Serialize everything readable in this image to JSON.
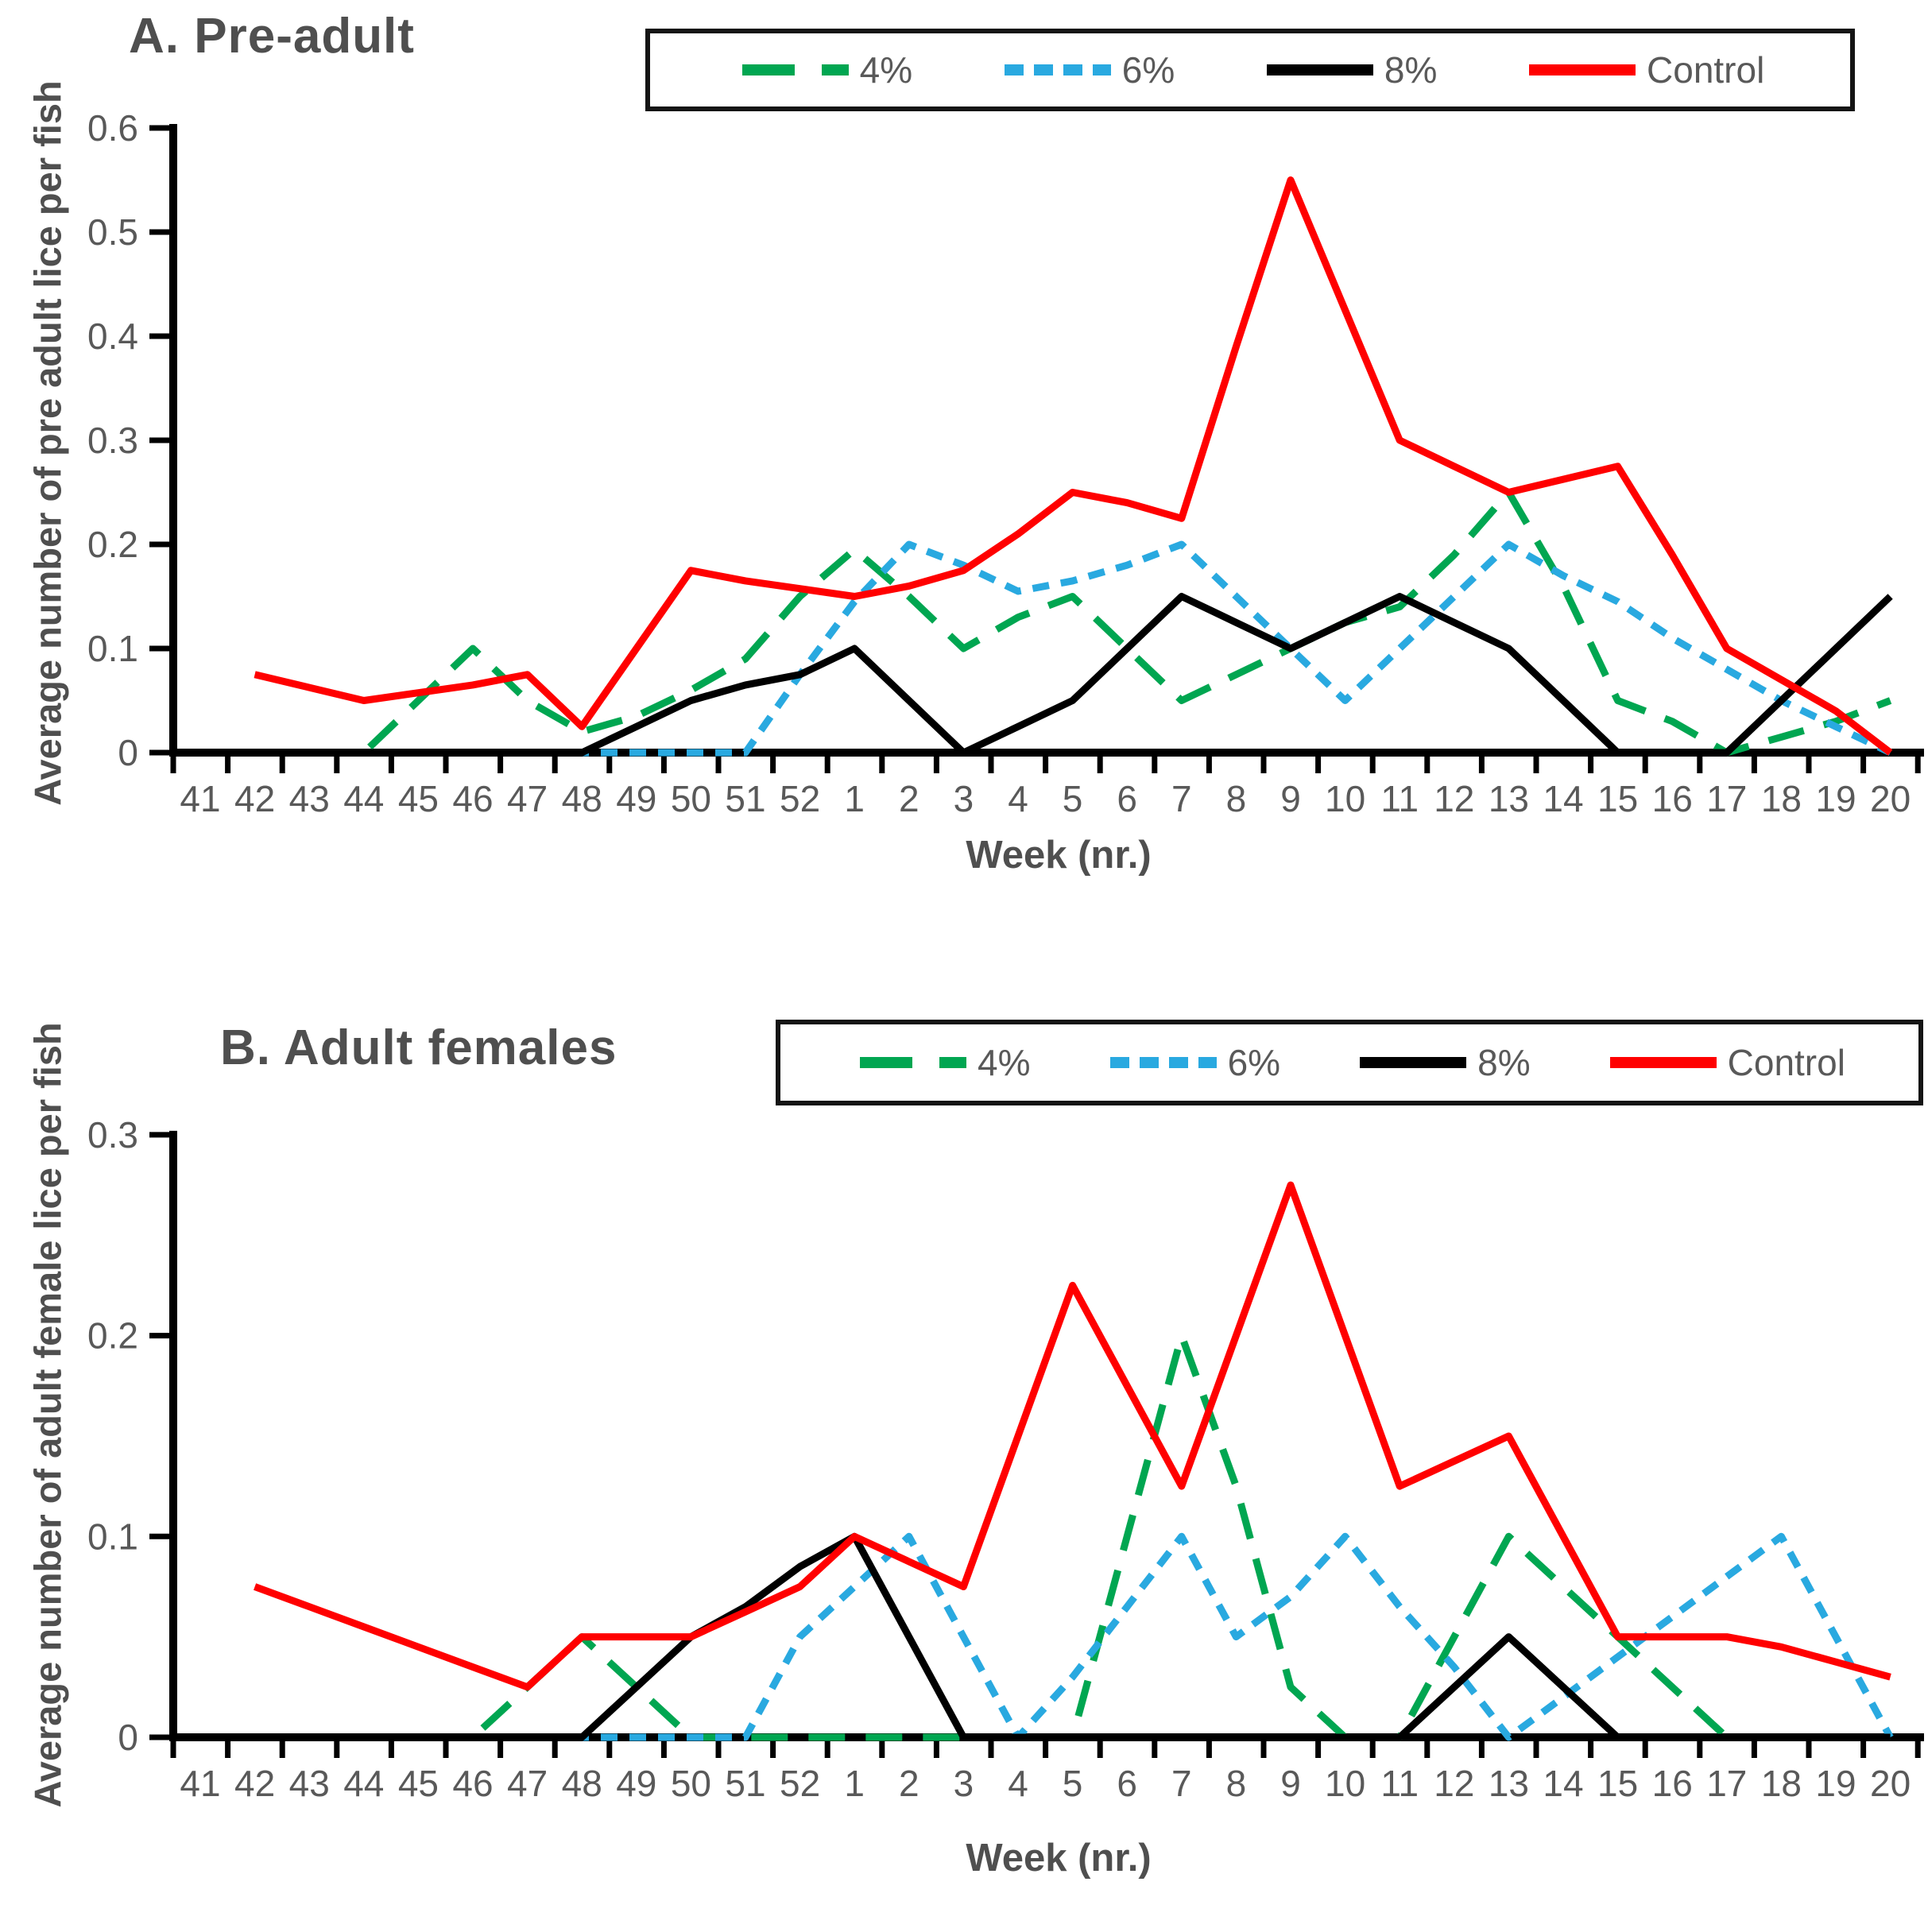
{
  "figure": {
    "background": "#FFFFFF",
    "text_color": "#595959",
    "title_color": "#4F4F4F",
    "axis_color": "#000000"
  },
  "legend": {
    "items": [
      {
        "id": "4pct",
        "label": "4%",
        "color": "#00A651",
        "dash": "long"
      },
      {
        "id": "6pct",
        "label": "6%",
        "color": "#29A9E0",
        "dash": "short"
      },
      {
        "id": "8pct",
        "label": "8%",
        "color": "#000000",
        "dash": "solid"
      },
      {
        "id": "control",
        "label": "Control",
        "color": "#FF0000",
        "dash": "solid"
      }
    ]
  },
  "chart_data": [
    {
      "type": "line",
      "title": "A. Pre-adult",
      "xlabel": "Week (nr.)",
      "ylabel": "Average number of pre adult lice per fish",
      "ylim": [
        0,
        0.6
      ],
      "yticks": [
        "0",
        "0.1",
        "0.2",
        "0.3",
        "0.4",
        "0.5",
        "0.6"
      ],
      "grid": false,
      "legend_position": "top-right",
      "categories": [
        "41",
        "42",
        "43",
        "44",
        "45",
        "46",
        "47",
        "48",
        "49",
        "50",
        "51",
        "52",
        "1",
        "2",
        "3",
        "4",
        "5",
        "6",
        "7",
        "8",
        "9",
        "10",
        "11",
        "12",
        "13",
        "14",
        "15",
        "16",
        "17",
        "18",
        "19",
        "20"
      ],
      "series": [
        {
          "name": "4%",
          "color": "#00A651",
          "dash": "long",
          "values": [
            0,
            0,
            0,
            0,
            0.05,
            0.1,
            0.05,
            0.02,
            0.035,
            0.06,
            0.09,
            0.15,
            0.195,
            0.15,
            0.1,
            0.13,
            0.15,
            0.1,
            0.05,
            0.075,
            0.1,
            0.125,
            0.14,
            0.19,
            0.25,
            0.16,
            0.05,
            0.03,
            0,
            0.015,
            0.03,
            0.05
          ]
        },
        {
          "name": "6%",
          "color": "#29A9E0",
          "dash": "short",
          "values": [
            0,
            0,
            0,
            0,
            0,
            0,
            0,
            0,
            0,
            0,
            0,
            0.075,
            0.145,
            0.2,
            0.18,
            0.155,
            0.165,
            0.18,
            0.2,
            0.15,
            0.1,
            0.05,
            0.1,
            0.15,
            0.2,
            0.17,
            0.145,
            0.11,
            0.08,
            0.05,
            0.025,
            0
          ]
        },
        {
          "name": "8%",
          "color": "#000000",
          "dash": "solid",
          "values": [
            0,
            0,
            0,
            0,
            0,
            0,
            0,
            0,
            0.025,
            0.05,
            0.065,
            0.075,
            0.1,
            0.05,
            0,
            0.025,
            0.05,
            0.1,
            0.15,
            0.125,
            0.1,
            0.125,
            0.15,
            0.125,
            0.1,
            0.05,
            0,
            0,
            0,
            0.05,
            0.1,
            0.15
          ]
        },
        {
          "name": "Control",
          "color": "#FF0000",
          "dash": "solid",
          "values": [
            null,
            0.075,
            0.0625,
            0.05,
            0.0575,
            0.065,
            0.075,
            0.025,
            0.1,
            0.175,
            0.165,
            0.1575,
            0.15,
            0.16,
            0.175,
            0.21,
            0.25,
            0.24,
            0.225,
            0.39,
            0.55,
            0.425,
            0.3,
            0.275,
            0.25,
            0.2625,
            0.275,
            0.19,
            0.1,
            0.07,
            0.04,
            0
          ]
        }
      ]
    },
    {
      "type": "line",
      "title": "B. Adult females",
      "xlabel": "Week (nr.)",
      "ylabel": "Average number of adult female lice per fish",
      "ylim": [
        0,
        0.3
      ],
      "yticks": [
        "0",
        "0.1",
        "0.2",
        "0.3"
      ],
      "grid": false,
      "legend_position": "top-right",
      "categories": [
        "41",
        "42",
        "43",
        "44",
        "45",
        "46",
        "47",
        "48",
        "49",
        "50",
        "51",
        "52",
        "1",
        "2",
        "3",
        "4",
        "5",
        "6",
        "7",
        "8",
        "9",
        "10",
        "11",
        "12",
        "13",
        "14",
        "15",
        "16",
        "17",
        "18",
        "19",
        "20"
      ],
      "series": [
        {
          "name": "4%",
          "color": "#00A651",
          "dash": "long",
          "values": [
            0,
            0,
            0,
            0,
            0,
            0,
            0.025,
            0.05,
            0.025,
            0,
            0,
            0,
            0,
            0,
            0,
            0,
            0,
            0.1,
            0.2,
            0.125,
            0.025,
            0,
            0,
            0.05,
            0.1,
            0.075,
            0.05,
            0.025,
            0,
            0,
            0,
            0
          ]
        },
        {
          "name": "6%",
          "color": "#29A9E0",
          "dash": "short",
          "values": [
            0,
            0,
            0,
            0,
            0,
            0,
            0,
            0,
            0,
            0,
            0,
            0.05,
            0.075,
            0.1,
            0.05,
            0,
            0.03,
            0.065,
            0.1,
            0.05,
            0.07,
            0.1,
            0.065,
            0.035,
            0,
            0.02,
            0.04,
            0.06,
            0.08,
            0.1,
            0.05,
            0
          ]
        },
        {
          "name": "8%",
          "color": "#000000",
          "dash": "solid",
          "values": [
            0,
            0,
            0,
            0,
            0,
            0,
            0,
            0,
            0.025,
            0.05,
            0.065,
            0.085,
            0.1,
            0.05,
            0,
            0,
            0,
            0,
            0,
            0,
            0,
            0,
            0,
            0.025,
            0.05,
            0.025,
            0,
            0,
            0,
            0,
            0,
            0
          ]
        },
        {
          "name": "Control",
          "color": "#FF0000",
          "dash": "solid",
          "values": [
            null,
            0.075,
            0.065,
            0.055,
            0.045,
            0.035,
            0.025,
            0.05,
            0.05,
            0.05,
            0.0625,
            0.075,
            0.1,
            0.0875,
            0.075,
            0.15,
            0.225,
            0.175,
            0.125,
            0.2,
            0.275,
            0.2,
            0.125,
            0.1375,
            0.15,
            0.1,
            0.05,
            0.05,
            0.05,
            0.045,
            0.0375,
            0.03
          ]
        }
      ]
    }
  ]
}
